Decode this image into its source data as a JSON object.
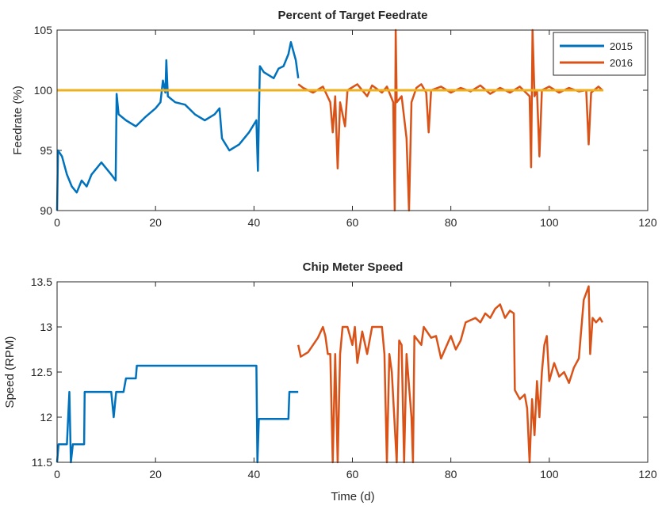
{
  "chart_data": [
    {
      "type": "line",
      "title": "Percent of Target Feedrate",
      "xlabel": "",
      "ylabel": "Feedrate (%)",
      "xlim": [
        0,
        120
      ],
      "ylim": [
        90,
        105
      ],
      "xticks": [
        "0",
        "20",
        "40",
        "60",
        "80",
        "100",
        "120"
      ],
      "yticks": [
        "90",
        "95",
        "100",
        "105"
      ],
      "grid": false,
      "legend": {
        "placement": "top-right",
        "entries": [
          "2015",
          "2016"
        ]
      },
      "target_line": {
        "y": 100,
        "x": [
          0,
          111
        ],
        "color": "#EDB120"
      },
      "series": [
        {
          "name": "2015",
          "color": "#0072BD",
          "points": [
            [
              0,
              90.0
            ],
            [
              0.2,
              95.0
            ],
            [
              1.0,
              94.5
            ],
            [
              2.0,
              93.0
            ],
            [
              3.0,
              92.0
            ],
            [
              4.0,
              91.5
            ],
            [
              5.0,
              92.5
            ],
            [
              6.0,
              92.0
            ],
            [
              7.0,
              93.0
            ],
            [
              8.0,
              93.5
            ],
            [
              9.0,
              94.0
            ],
            [
              10.0,
              93.5
            ],
            [
              11.0,
              93.0
            ],
            [
              11.9,
              92.5
            ],
            [
              12.1,
              99.7
            ],
            [
              12.5,
              98.0
            ],
            [
              14.0,
              97.5
            ],
            [
              16.0,
              97.0
            ],
            [
              18.0,
              97.8
            ],
            [
              20.0,
              98.5
            ],
            [
              21.0,
              99.0
            ],
            [
              21.5,
              100.8
            ],
            [
              22.0,
              99.8
            ],
            [
              22.2,
              102.5
            ],
            [
              22.5,
              99.5
            ],
            [
              24.0,
              99.0
            ],
            [
              26.0,
              98.8
            ],
            [
              28.0,
              98.0
            ],
            [
              30.0,
              97.5
            ],
            [
              32.0,
              98.0
            ],
            [
              33.0,
              98.5
            ],
            [
              33.5,
              96.0
            ],
            [
              35.0,
              95.0
            ],
            [
              37.0,
              95.5
            ],
            [
              39.0,
              96.5
            ],
            [
              40.5,
              97.5
            ],
            [
              40.8,
              93.3
            ],
            [
              41.2,
              102.0
            ],
            [
              42.0,
              101.5
            ],
            [
              44.0,
              101.0
            ],
            [
              45.0,
              101.8
            ],
            [
              46.0,
              102.0
            ],
            [
              47.0,
              103.0
            ],
            [
              47.5,
              104.0
            ],
            [
              48.5,
              102.5
            ],
            [
              49.0,
              101.0
            ]
          ]
        },
        {
          "name": "2016",
          "color": "#D95319",
          "points": [
            [
              49.0,
              100.5
            ],
            [
              50.0,
              100.2
            ],
            [
              52.0,
              99.8
            ],
            [
              54.0,
              100.3
            ],
            [
              55.5,
              99.0
            ],
            [
              56.0,
              96.5
            ],
            [
              56.5,
              99.5
            ],
            [
              57.0,
              93.5
            ],
            [
              57.5,
              99.0
            ],
            [
              58.5,
              97.0
            ],
            [
              59.0,
              100.0
            ],
            [
              61.0,
              100.5
            ],
            [
              63.0,
              99.5
            ],
            [
              64.0,
              100.4
            ],
            [
              66.0,
              99.8
            ],
            [
              67.0,
              100.3
            ],
            [
              68.3,
              99.0
            ],
            [
              68.6,
              90.0
            ],
            [
              68.8,
              105.0
            ],
            [
              69.0,
              99.0
            ],
            [
              70.0,
              99.5
            ],
            [
              71.0,
              96.0
            ],
            [
              71.5,
              90.0
            ],
            [
              72.0,
              99.0
            ],
            [
              73.0,
              100.2
            ],
            [
              74.0,
              100.5
            ],
            [
              75.0,
              99.8
            ],
            [
              75.5,
              96.5
            ],
            [
              76.0,
              100.0
            ],
            [
              78.0,
              100.3
            ],
            [
              80.0,
              99.8
            ],
            [
              82.0,
              100.2
            ],
            [
              84.0,
              99.9
            ],
            [
              86.0,
              100.4
            ],
            [
              88.0,
              99.7
            ],
            [
              90.0,
              100.2
            ],
            [
              92.0,
              99.8
            ],
            [
              94.0,
              100.3
            ],
            [
              96.0,
              99.5
            ],
            [
              96.3,
              93.6
            ],
            [
              96.6,
              105.0
            ],
            [
              97.0,
              99.5
            ],
            [
              97.5,
              100.0
            ],
            [
              98.0,
              94.5
            ],
            [
              98.5,
              100.0
            ],
            [
              100.0,
              100.3
            ],
            [
              102.0,
              99.8
            ],
            [
              104.0,
              100.2
            ],
            [
              106.0,
              99.9
            ],
            [
              107.5,
              100.0
            ],
            [
              108.0,
              95.5
            ],
            [
              108.5,
              99.8
            ],
            [
              110.0,
              100.3
            ],
            [
              110.8,
              100.0
            ]
          ]
        }
      ]
    },
    {
      "type": "line",
      "title": "Chip Meter Speed",
      "xlabel": "Time (d)",
      "ylabel": "Speed (RPM)",
      "xlim": [
        0,
        120
      ],
      "ylim": [
        11.5,
        13.5
      ],
      "xticks": [
        "0",
        "20",
        "40",
        "60",
        "80",
        "100",
        "120"
      ],
      "yticks": [
        "11.5",
        "12",
        "12.5",
        "13",
        "13.5"
      ],
      "grid": false,
      "series": [
        {
          "name": "2015",
          "color": "#0072BD",
          "points": [
            [
              0,
              11.5
            ],
            [
              0.3,
              11.7
            ],
            [
              2.0,
              11.7
            ],
            [
              2.5,
              12.28
            ],
            [
              2.8,
              11.5
            ],
            [
              3.2,
              11.7
            ],
            [
              5.5,
              11.7
            ],
            [
              5.6,
              12.28
            ],
            [
              11.0,
              12.28
            ],
            [
              11.5,
              12.0
            ],
            [
              12.0,
              12.28
            ],
            [
              13.5,
              12.28
            ],
            [
              14.0,
              12.43
            ],
            [
              16.0,
              12.43
            ],
            [
              16.2,
              12.57
            ],
            [
              40.5,
              12.57
            ],
            [
              40.7,
              11.5
            ],
            [
              41.0,
              11.98
            ],
            [
              47.0,
              11.98
            ],
            [
              47.2,
              12.28
            ],
            [
              49.0,
              12.28
            ]
          ]
        },
        {
          "name": "2016",
          "color": "#D95319",
          "points": [
            [
              49.0,
              12.8
            ],
            [
              49.5,
              12.67
            ],
            [
              51.0,
              12.72
            ],
            [
              52.0,
              12.8
            ],
            [
              53.0,
              12.88
            ],
            [
              54.0,
              13.0
            ],
            [
              54.5,
              12.9
            ],
            [
              55.0,
              12.7
            ],
            [
              55.5,
              12.7
            ],
            [
              56.0,
              11.5
            ],
            [
              56.5,
              12.7
            ],
            [
              57.0,
              11.5
            ],
            [
              57.5,
              12.7
            ],
            [
              58.0,
              13.0
            ],
            [
              59.0,
              13.0
            ],
            [
              60.0,
              12.8
            ],
            [
              60.5,
              13.0
            ],
            [
              61.0,
              12.6
            ],
            [
              62.0,
              12.95
            ],
            [
              63.0,
              12.7
            ],
            [
              64.0,
              13.0
            ],
            [
              66.0,
              13.0
            ],
            [
              66.5,
              12.7
            ],
            [
              67.0,
              11.5
            ],
            [
              67.5,
              12.7
            ],
            [
              68.0,
              12.5
            ],
            [
              69.0,
              11.5
            ],
            [
              69.5,
              12.85
            ],
            [
              70.0,
              12.8
            ],
            [
              70.5,
              11.5
            ],
            [
              71.0,
              12.7
            ],
            [
              72.0,
              12.0
            ],
            [
              72.3,
              11.5
            ],
            [
              72.6,
              12.9
            ],
            [
              74.0,
              12.8
            ],
            [
              74.5,
              13.0
            ],
            [
              76.0,
              12.88
            ],
            [
              77.0,
              12.9
            ],
            [
              78.0,
              12.65
            ],
            [
              80.0,
              12.9
            ],
            [
              81.0,
              12.75
            ],
            [
              82.0,
              12.85
            ],
            [
              83.0,
              13.05
            ],
            [
              85.0,
              13.1
            ],
            [
              86.0,
              13.05
            ],
            [
              87.0,
              13.15
            ],
            [
              88.0,
              13.1
            ],
            [
              89.0,
              13.2
            ],
            [
              90.0,
              13.25
            ],
            [
              91.0,
              13.1
            ],
            [
              92.0,
              13.18
            ],
            [
              92.8,
              13.15
            ],
            [
              93.0,
              12.3
            ],
            [
              94.0,
              12.2
            ],
            [
              95.0,
              12.25
            ],
            [
              95.5,
              12.1
            ],
            [
              96.0,
              11.5
            ],
            [
              96.5,
              12.2
            ],
            [
              97.0,
              11.8
            ],
            [
              97.5,
              12.4
            ],
            [
              98.0,
              12.0
            ],
            [
              98.5,
              12.5
            ],
            [
              99.0,
              12.8
            ],
            [
              99.5,
              12.9
            ],
            [
              100.0,
              12.4
            ],
            [
              101.0,
              12.6
            ],
            [
              102.0,
              12.45
            ],
            [
              103.0,
              12.5
            ],
            [
              104.0,
              12.38
            ],
            [
              105.0,
              12.55
            ],
            [
              106.0,
              12.65
            ],
            [
              107.0,
              13.3
            ],
            [
              108.0,
              13.45
            ],
            [
              108.3,
              12.7
            ],
            [
              108.8,
              13.1
            ],
            [
              109.5,
              13.05
            ],
            [
              110.3,
              13.1
            ],
            [
              110.8,
              13.05
            ]
          ]
        }
      ]
    }
  ]
}
